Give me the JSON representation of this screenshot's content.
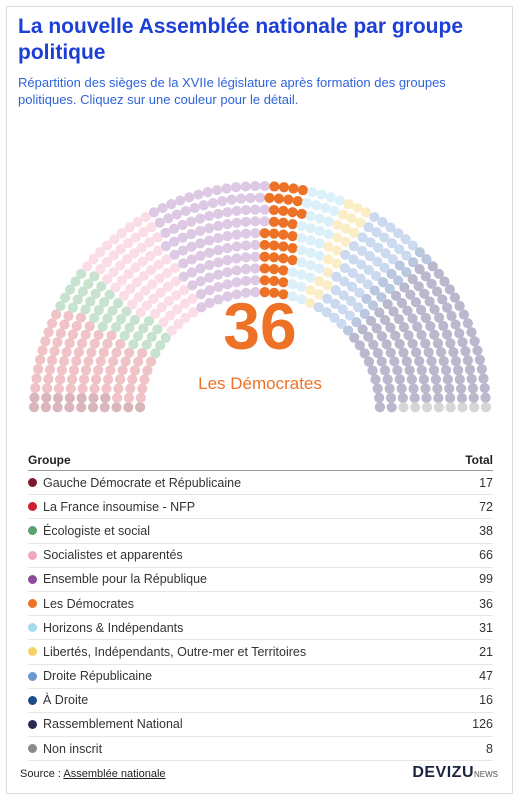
{
  "title": "La nouvelle Assemblée nationale par groupe politique",
  "subtitle": "Répartition des sièges de la XVIIe législature après formation des groupes politiques. Cliquez sur une couleur pour le détail.",
  "selected": {
    "value": "36",
    "label": "Les Démocrates",
    "color": "#ee7226"
  },
  "table": {
    "col_group": "Groupe",
    "col_total": "Total"
  },
  "chart_data": {
    "type": "parliament",
    "total_seats": 577,
    "series": [
      {
        "name": "Gauche Démocrate et Républicaine",
        "value": 17,
        "color": "#7a1a2b",
        "light": "#d9b6bc"
      },
      {
        "name": "La France insoumise - NFP",
        "value": 72,
        "color": "#cc1f2f",
        "light": "#f0c3c6"
      },
      {
        "name": "Écologiste et social",
        "value": 38,
        "color": "#5aa070",
        "light": "#c7e3cf"
      },
      {
        "name": "Socialistes et apparentés",
        "value": 66,
        "color": "#f2a7bf",
        "light": "#fbdde7"
      },
      {
        "name": "Ensemble pour la République",
        "value": 99,
        "color": "#8a4d9b",
        "light": "#ddc9e3"
      },
      {
        "name": "Les Démocrates",
        "value": 36,
        "color": "#ee7226",
        "light": "#ee7226"
      },
      {
        "name": "Horizons & Indépendants",
        "value": 31,
        "color": "#a6daf2",
        "light": "#dcf0f9"
      },
      {
        "name": "Libertés, Indépendants, Outre-mer et Territoires",
        "value": 21,
        "color": "#f4d168",
        "light": "#fbedc6"
      },
      {
        "name": "Droite Républicaine",
        "value": 47,
        "color": "#6d97cf",
        "light": "#cbdaef"
      },
      {
        "name": "À Droite",
        "value": 16,
        "color": "#1e4b8a",
        "light": "#b9c8de"
      },
      {
        "name": "Rassemblement National",
        "value": 126,
        "color": "#2b2a57",
        "light": "#b9b8cc"
      },
      {
        "name": "Non inscrit",
        "value": 8,
        "color": "#8a8a8a",
        "light": "#d6d6d6"
      }
    ]
  },
  "footer": {
    "source_prefix": "Source : ",
    "source_link": "Assemblée nationale",
    "brand": "DEVIZU",
    "brand_suffix": "NEWS"
  }
}
